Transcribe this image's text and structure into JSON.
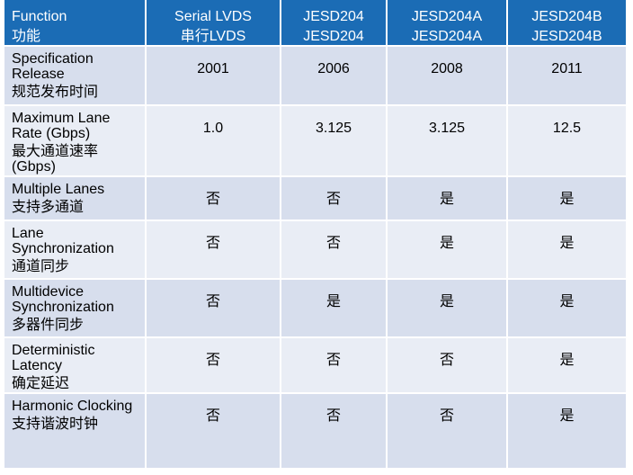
{
  "table": {
    "header": [
      [
        "Function",
        "功能"
      ],
      [
        "Serial LVDS",
        "串行LVDS"
      ],
      [
        "JESD204",
        "JESD204"
      ],
      [
        "JESD204A",
        "JESD204A"
      ],
      [
        "JESD204B",
        "JESD204B"
      ]
    ],
    "rows": [
      {
        "label": [
          "Specification Release",
          "规范发布时间"
        ],
        "cells": [
          "2001",
          "2006",
          "2008",
          "2011"
        ]
      },
      {
        "label": [
          "Maximum Lane Rate (Gbps)",
          "最大通道速率 (Gbps)"
        ],
        "cells": [
          "1.0",
          "3.125",
          "3.125",
          "12.5"
        ]
      },
      {
        "label": [
          "Multiple Lanes",
          "支持多通道"
        ],
        "cells": [
          "否",
          "否",
          "是",
          "是"
        ]
      },
      {
        "label": [
          "Lane Synchronization",
          "通道同步"
        ],
        "cells": [
          "否",
          "否",
          "是",
          "是"
        ]
      },
      {
        "label": [
          "Multidevice Synchronization",
          "多器件同步"
        ],
        "cells": [
          "否",
          "是",
          "是",
          "是"
        ]
      },
      {
        "label": [
          "Deterministic Latency",
          "确定延迟"
        ],
        "cells": [
          "否",
          "否",
          "否",
          "是"
        ]
      },
      {
        "label": [
          "Harmonic Clocking",
          "支持谐波时钟"
        ],
        "cells": [
          "否",
          "否",
          "否",
          "是"
        ]
      }
    ]
  }
}
